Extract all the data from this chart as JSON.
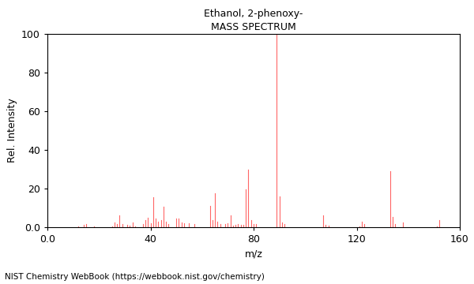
{
  "title_line1": "Ethanol, 2-phenoxy-",
  "title_line2": "MASS SPECTRUM",
  "xlabel": "m/z",
  "ylabel": "Rel. Intensity",
  "footer": "NIST Chemistry WebBook (https://webbook.nist.gov/chemistry)",
  "xlim": [
    0.0,
    160
  ],
  "ylim": [
    0.0,
    100
  ],
  "xticks": [
    0.0,
    40,
    80,
    120,
    160
  ],
  "yticks": [
    0,
    20,
    40,
    60,
    80,
    100
  ],
  "bar_color": "#FF6666",
  "background_color": "#ffffff",
  "peaks": [
    [
      12,
      0.5
    ],
    [
      14,
      1.2
    ],
    [
      15,
      1.8
    ],
    [
      18,
      0.5
    ],
    [
      25,
      0.5
    ],
    [
      26,
      2.5
    ],
    [
      27,
      1.5
    ],
    [
      28,
      6.0
    ],
    [
      29,
      1.5
    ],
    [
      31,
      1.2
    ],
    [
      32,
      1.0
    ],
    [
      33,
      2.5
    ],
    [
      34,
      0.5
    ],
    [
      37,
      1.5
    ],
    [
      38,
      3.5
    ],
    [
      39,
      5.0
    ],
    [
      40,
      2.0
    ],
    [
      41,
      15.5
    ],
    [
      42,
      4.5
    ],
    [
      43,
      3.0
    ],
    [
      44,
      3.5
    ],
    [
      45,
      10.5
    ],
    [
      46,
      3.0
    ],
    [
      47,
      1.5
    ],
    [
      50,
      4.5
    ],
    [
      51,
      4.5
    ],
    [
      52,
      2.5
    ],
    [
      53,
      2.0
    ],
    [
      55,
      2.0
    ],
    [
      57,
      1.5
    ],
    [
      63,
      11.0
    ],
    [
      64,
      3.5
    ],
    [
      65,
      17.5
    ],
    [
      66,
      3.0
    ],
    [
      67,
      1.5
    ],
    [
      69,
      1.5
    ],
    [
      70,
      2.0
    ],
    [
      71,
      6.0
    ],
    [
      72,
      1.0
    ],
    [
      73,
      1.2
    ],
    [
      74,
      1.5
    ],
    [
      75,
      1.2
    ],
    [
      76,
      1.2
    ],
    [
      77,
      19.5
    ],
    [
      78,
      30.0
    ],
    [
      79,
      3.5
    ],
    [
      80,
      1.5
    ],
    [
      81,
      1.5
    ],
    [
      89,
      100.0
    ],
    [
      90,
      16.0
    ],
    [
      91,
      2.5
    ],
    [
      92,
      1.5
    ],
    [
      107,
      6.0
    ],
    [
      108,
      1.2
    ],
    [
      109,
      1.0
    ],
    [
      121,
      0.5
    ],
    [
      122,
      3.0
    ],
    [
      123,
      1.5
    ],
    [
      133,
      29.0
    ],
    [
      134,
      5.5
    ],
    [
      135,
      1.5
    ],
    [
      138,
      2.5
    ],
    [
      151,
      0.5
    ],
    [
      152,
      3.5
    ]
  ]
}
